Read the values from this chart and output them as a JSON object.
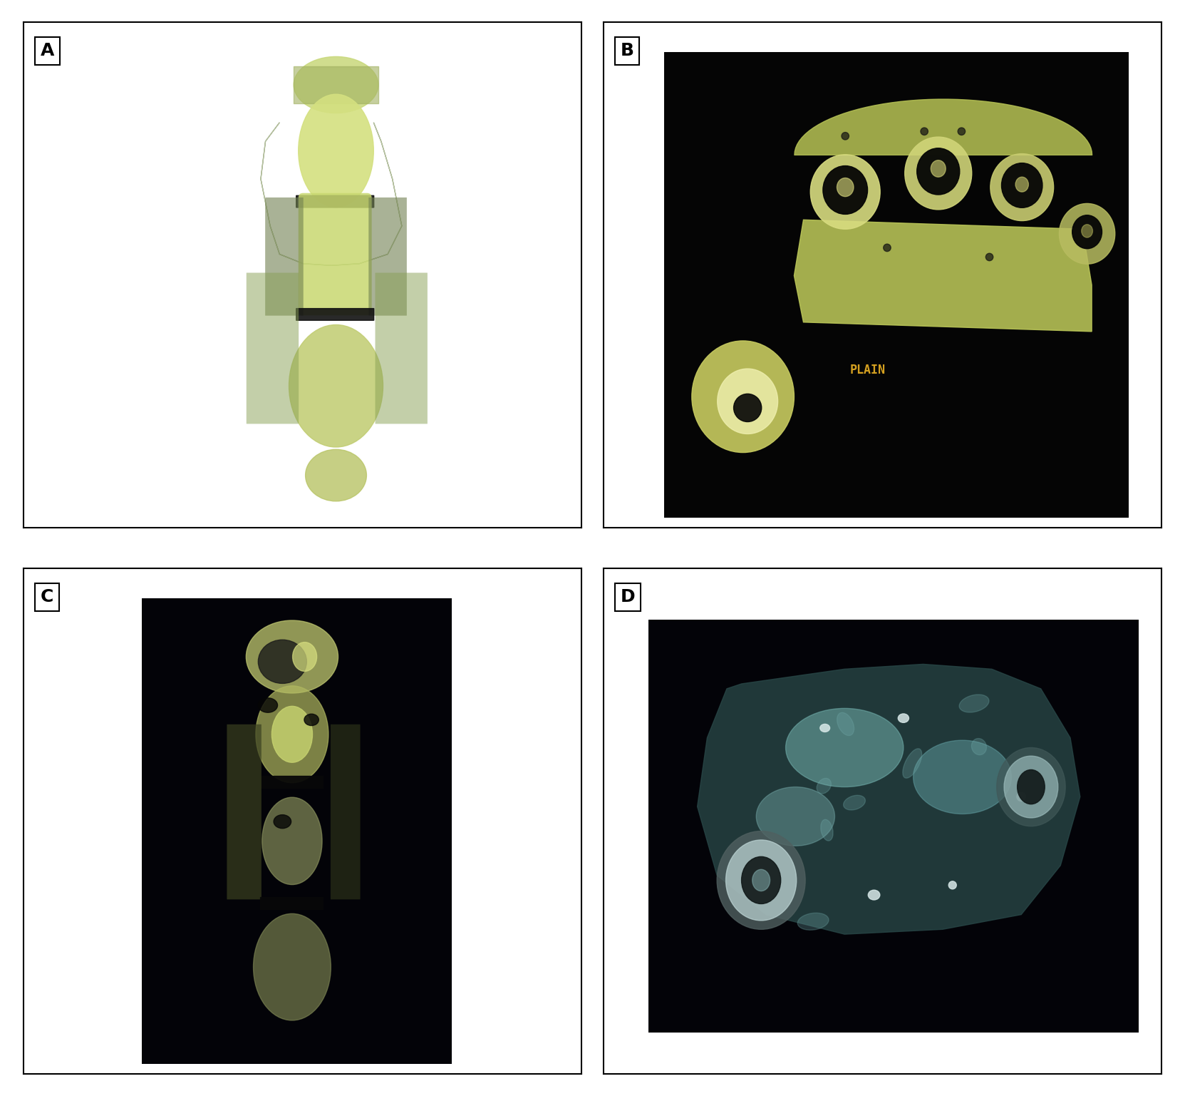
{
  "panel_labels": [
    "A",
    "B",
    "C",
    "D"
  ],
  "label_fontsize": 18,
  "label_fontweight": "bold",
  "background_color": "#ffffff",
  "border_color": "#000000",
  "figsize": [
    16.63,
    15.37
  ],
  "dpi": 100,
  "grid_rows": 2,
  "grid_cols": 2,
  "hspace": 0.08,
  "wspace": 0.04
}
